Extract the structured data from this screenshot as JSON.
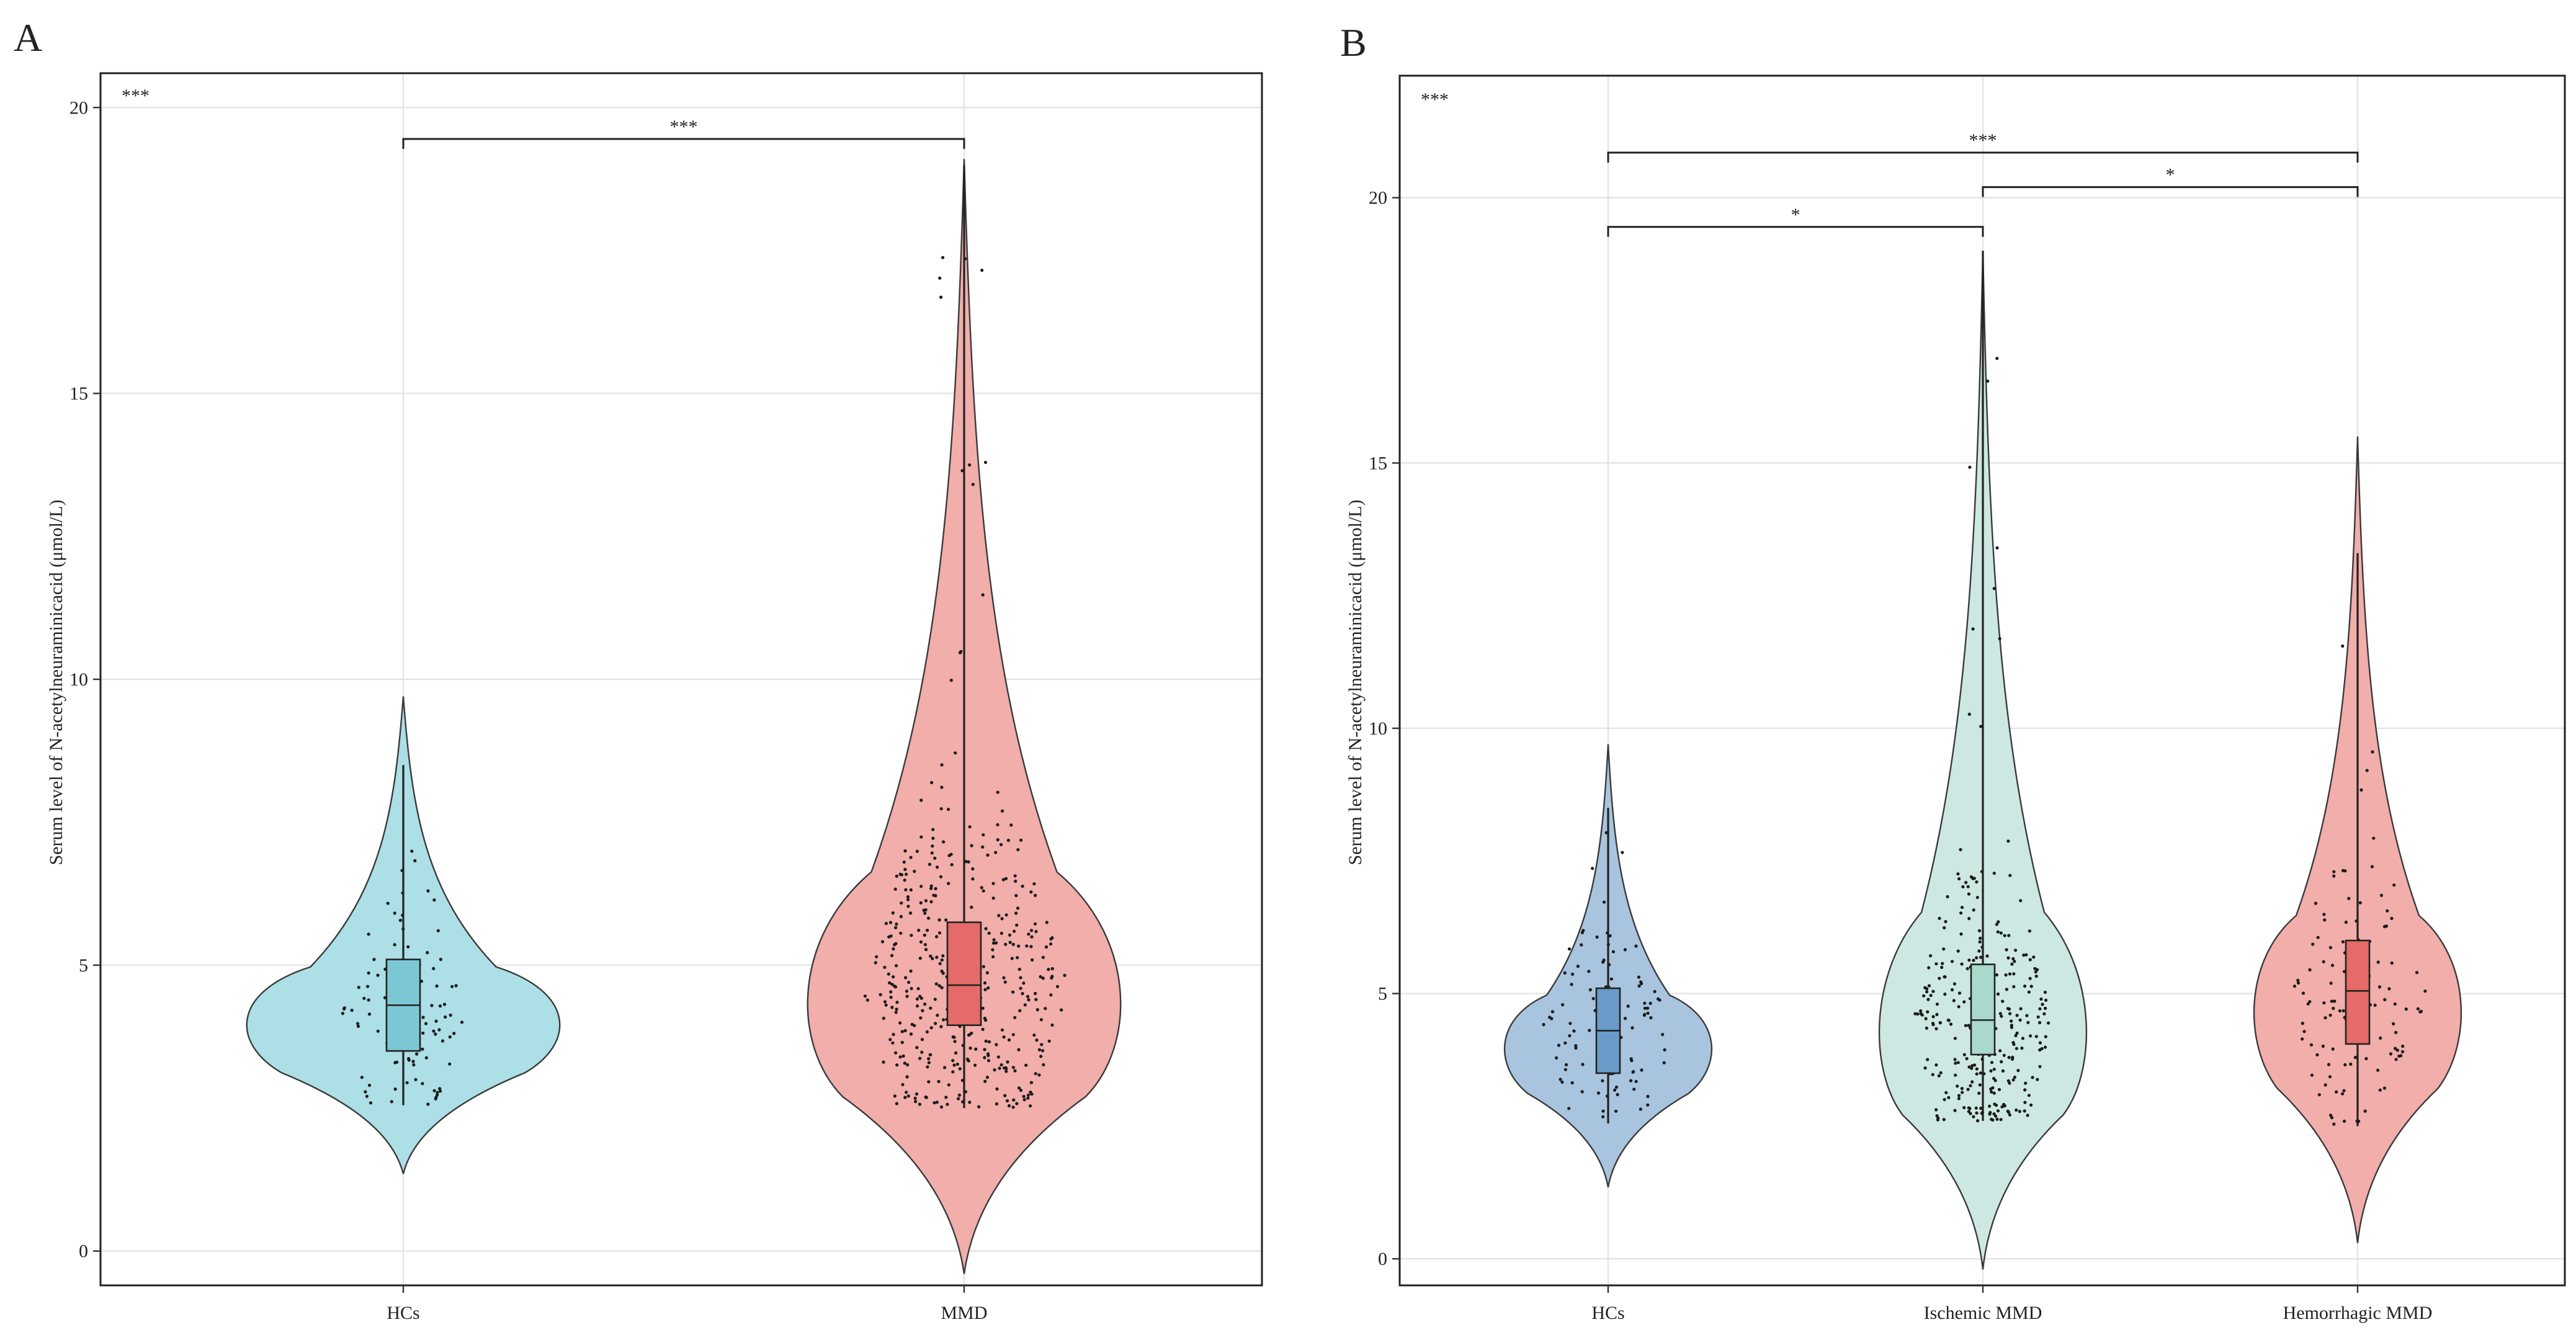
{
  "chart_data": [
    {
      "panel": "A",
      "type": "violin",
      "ylabel": "Serum level of N-acetylneuraminicacid (μmol/L)",
      "ylim": [
        -0.6,
        20.6
      ],
      "yticks": [
        0,
        5,
        10,
        15,
        20
      ],
      "overall_test": "***",
      "categories": [
        "HCs",
        "MMD"
      ],
      "colors": [
        "#acdfe6",
        "#f1aeab"
      ],
      "box_colors": [
        "#7cc7d4",
        "#e56b68"
      ],
      "series": [
        {
          "name": "HCs",
          "n": 110,
          "min": 2.55,
          "q1": 3.5,
          "median": 4.3,
          "q3": 5.1,
          "max": 8.5,
          "violin_low": 1.35,
          "violin_high": 9.7,
          "mode": 4.2,
          "spread": 1.25
        },
        {
          "name": "MMD",
          "n": 420,
          "min": 2.5,
          "q1": 3.95,
          "median": 4.65,
          "q3": 5.75,
          "max": 19.0,
          "violin_low": -0.4,
          "violin_high": 19.1,
          "mode": 4.6,
          "spread": 1.9
        }
      ],
      "comparisons": [
        {
          "groups": [
            "HCs",
            "MMD"
          ],
          "label": "***",
          "y": 19.45
        }
      ]
    },
    {
      "panel": "B",
      "type": "violin",
      "ylabel": "Serum level of N-acetylneuraminicacid (μmol/L)",
      "ylim": [
        -0.5,
        22.3
      ],
      "yticks": [
        0,
        5,
        10,
        15,
        20
      ],
      "overall_test": "***",
      "categories": [
        "HCs",
        "Ischemic MMD",
        "Hemorrhagic MMD"
      ],
      "colors": [
        "#a9c4de",
        "#cde8e2",
        "#f1aeab"
      ],
      "box_colors": [
        "#6b9cc9",
        "#a9d8cd",
        "#e56b68"
      ],
      "series": [
        {
          "name": "HCs",
          "n": 110,
          "min": 2.55,
          "q1": 3.5,
          "median": 4.3,
          "q3": 5.1,
          "max": 8.5,
          "violin_low": 1.35,
          "violin_high": 9.7,
          "mode": 4.2,
          "spread": 1.25
        },
        {
          "name": "Ischemic MMD",
          "n": 300,
          "min": 2.6,
          "q1": 3.85,
          "median": 4.5,
          "q3": 5.55,
          "max": 19.0,
          "violin_low": -0.2,
          "violin_high": 19.0,
          "mode": 4.5,
          "spread": 1.8
        },
        {
          "name": "Hemorrhagic MMD",
          "n": 120,
          "min": 2.5,
          "q1": 4.05,
          "median": 5.05,
          "q3": 6.0,
          "max": 13.3,
          "violin_low": 0.3,
          "violin_high": 15.5,
          "mode": 5.0,
          "spread": 1.6
        }
      ],
      "comparisons": [
        {
          "groups": [
            "HCs",
            "Ischemic MMD"
          ],
          "label": "*",
          "y": 19.45
        },
        {
          "groups": [
            "Ischemic MMD",
            "Hemorrhagic MMD"
          ],
          "label": "*",
          "y": 20.2
        },
        {
          "groups": [
            "HCs",
            "Hemorrhagic MMD"
          ],
          "label": "***",
          "y": 20.85
        }
      ]
    }
  ]
}
